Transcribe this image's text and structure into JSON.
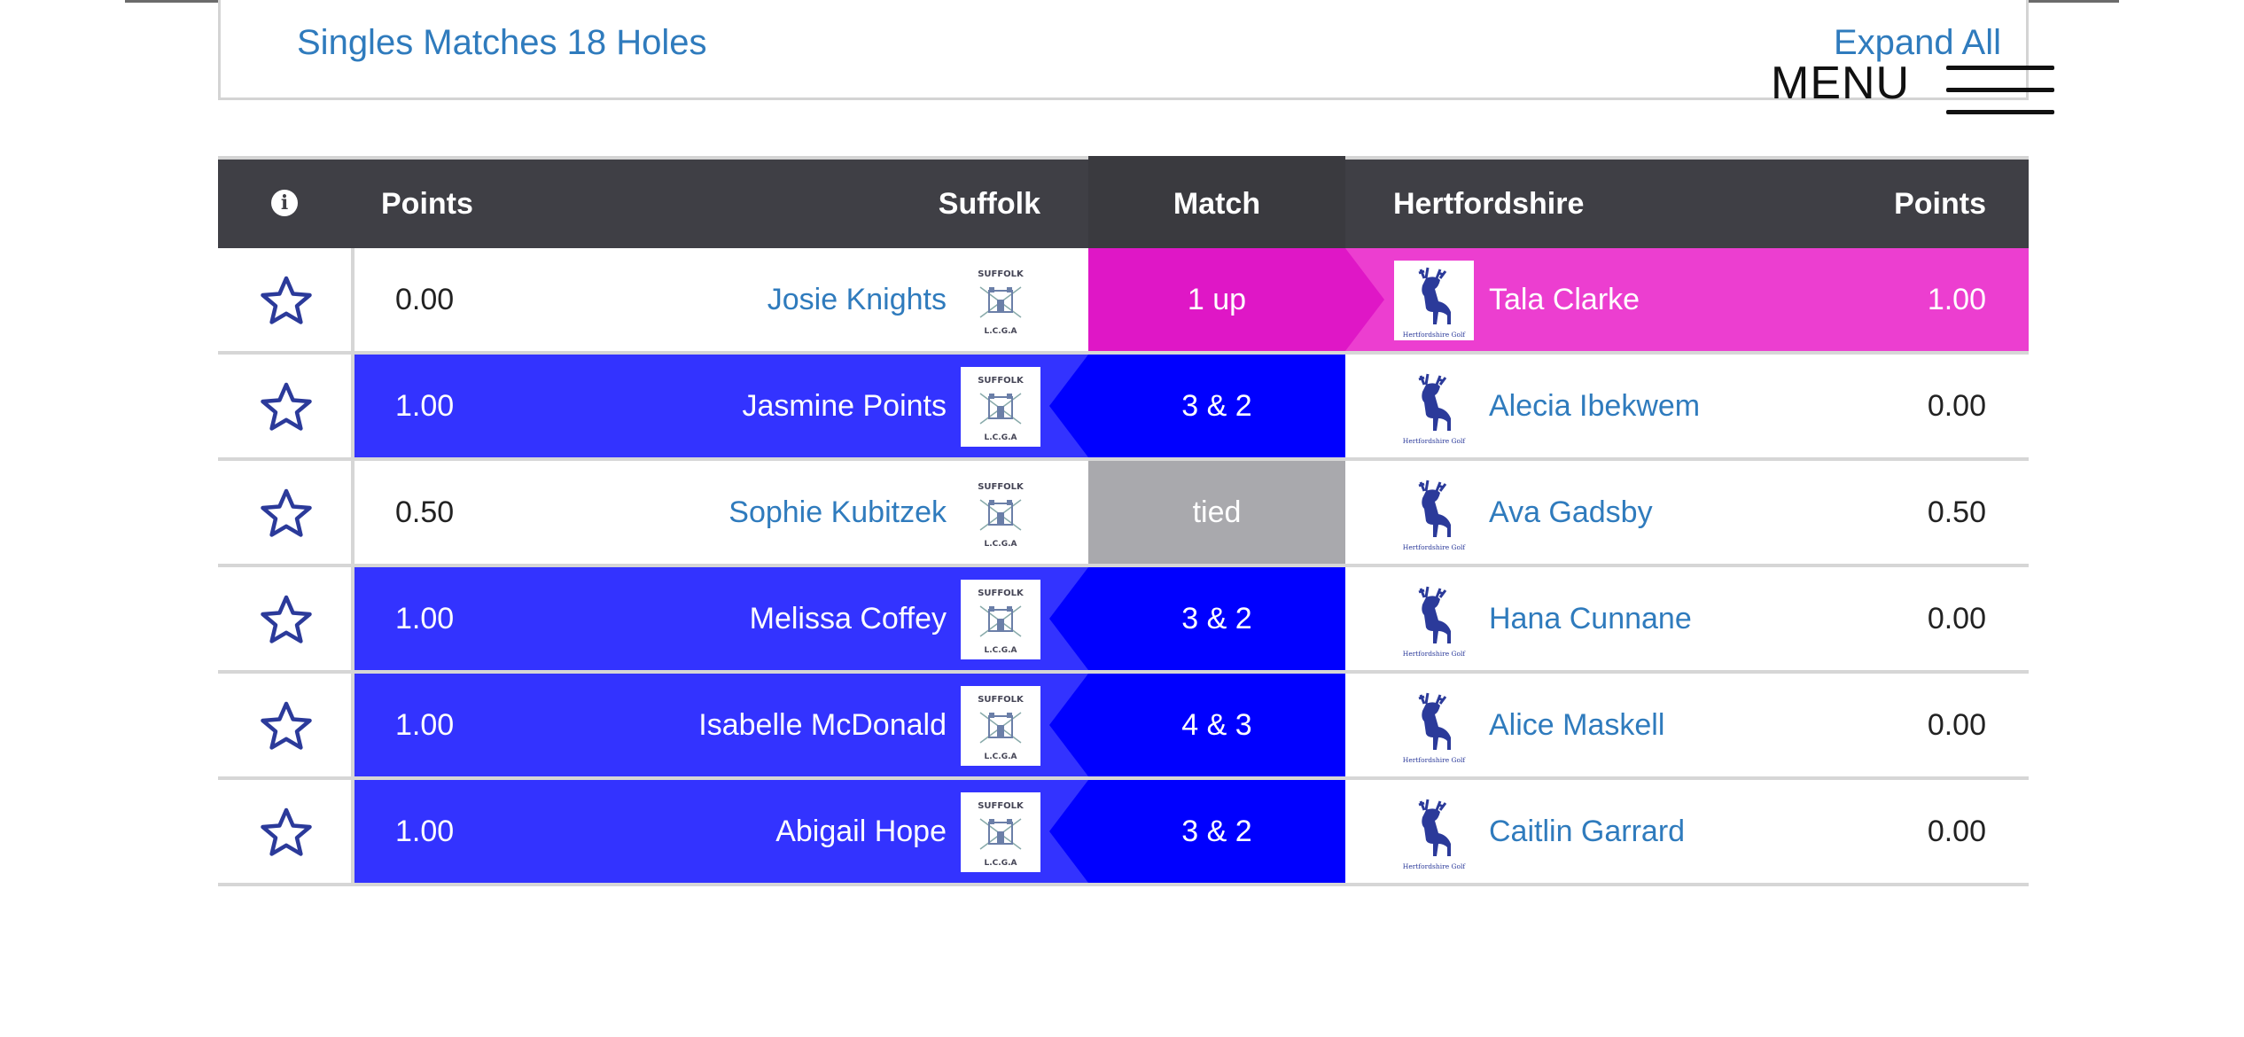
{
  "header": {
    "section_title": "Singles Matches 18 Holes",
    "expand_all": "Expand All",
    "menu_label": "MENU"
  },
  "table": {
    "columns": {
      "info": "i",
      "points_left": "Points",
      "team_left": "Suffolk",
      "match": "Match",
      "team_right": "Hertfordshire",
      "points_right": "Points"
    },
    "rows": [
      {
        "left_points": "0.00",
        "left_player": "Josie Knights",
        "result": "1 up",
        "right_player": "Tala Clarke",
        "right_points": "1.00",
        "winner": "right"
      },
      {
        "left_points": "1.00",
        "left_player": "Jasmine Points",
        "result": "3 & 2",
        "right_player": "Alecia Ibekwem",
        "right_points": "0.00",
        "winner": "left"
      },
      {
        "left_points": "0.50",
        "left_player": "Sophie Kubitzek",
        "result": "tied",
        "right_player": "Ava Gadsby",
        "right_points": "0.50",
        "winner": "tied"
      },
      {
        "left_points": "1.00",
        "left_player": "Melissa Coffey",
        "result": "3 & 2",
        "right_player": "Hana Cunnane",
        "right_points": "0.00",
        "winner": "left"
      },
      {
        "left_points": "1.00",
        "left_player": "Isabelle McDonald",
        "result": "4 & 3",
        "right_player": "Alice Maskell",
        "right_points": "0.00",
        "winner": "left"
      },
      {
        "left_points": "1.00",
        "left_player": "Abigail Hope",
        "result": "3 & 2",
        "right_player": "Caitlin Garrard",
        "right_points": "0.00",
        "winner": "left"
      }
    ]
  },
  "logos": {
    "left": {
      "top_text": "SUFFOLK",
      "bottom_text": "L.C.G.A"
    },
    "right": {
      "text": "Hertfordshire Golf"
    }
  },
  "colors": {
    "header_bg": "#3f3f45",
    "left_win_bg": "#3333ff",
    "left_win_match_bg": "#0000ff",
    "right_win_bg": "#ec3ed0",
    "right_win_match_bg": "#df17c6",
    "tied_bg": "#a9a9ad",
    "link": "#2f7bbd",
    "star": "#2b3a9a"
  }
}
